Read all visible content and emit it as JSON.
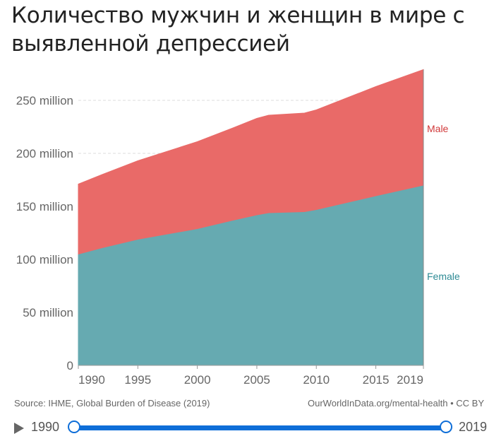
{
  "title": "Количество мужчин и женщин в мире с выявленной депрессией",
  "chart_data": {
    "type": "area",
    "stacked": true,
    "title": "Количество мужчин и женщин в мире с выявленной депрессией",
    "x": [
      1990,
      1992,
      1995,
      2000,
      2003,
      2005,
      2006,
      2009,
      2010,
      2015,
      2019
    ],
    "series": [
      {
        "name": "Female",
        "color": "#66aab1",
        "values": [
          105,
          111,
          119,
          129,
          137,
          142,
          144,
          145,
          147,
          160,
          170
        ]
      },
      {
        "name": "Male",
        "color": "#e96a68",
        "values": [
          66,
          69,
          74,
          82,
          87,
          91,
          92,
          93,
          94,
          103,
          109
        ]
      }
    ],
    "units": "million",
    "ylim": [
      0,
      280
    ],
    "xlim": [
      1990,
      2019
    ],
    "yticks": [
      0,
      50,
      100,
      150,
      200,
      250
    ],
    "ytick_labels": [
      "0",
      "50 million",
      "100 million",
      "150 million",
      "200 million",
      "250 million"
    ],
    "xticks": [
      1990,
      1995,
      2000,
      2005,
      2010,
      2015,
      2019
    ],
    "xtick_labels": [
      "1990",
      "1995",
      "2000",
      "2005",
      "2010",
      "2015",
      "2019"
    ],
    "grid": "horizontal dashed",
    "legend": "inline-right",
    "label_colors": {
      "Male": "#d1393a",
      "Female": "#2e8b95"
    }
  },
  "footer": {
    "source": "Source: IHME, Global Burden of Disease (2019)",
    "credit": "OurWorldInData.org/mental-health • CC BY"
  },
  "timeline": {
    "start": "1990",
    "end": "2019",
    "accent": "#0e6ed8"
  }
}
